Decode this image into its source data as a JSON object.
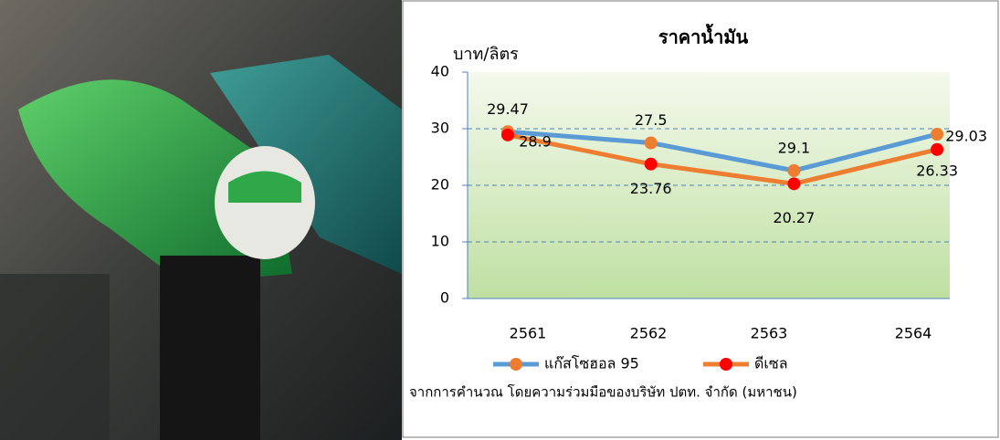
{
  "chart_data": {
    "type": "line",
    "title": "ราคาน้ำมัน",
    "y_label": "บาท/ลิตร",
    "categories": [
      "2561",
      "2562",
      "2563",
      "2564"
    ],
    "series": [
      {
        "name": "แก๊สโซฮอล 95",
        "color": "#5b9bd5",
        "marker_color": "#ed7d31",
        "values": [
          29.47,
          27.5,
          22.6,
          29.03
        ]
      },
      {
        "name": "ดีเซล",
        "color": "#ed7d31",
        "marker_color": "#ff0000",
        "values": [
          28.9,
          23.76,
          20.27,
          26.33
        ]
      }
    ],
    "annotations": [
      "29.1"
    ],
    "ylim": [
      0,
      40
    ],
    "yticks": [
      0,
      10,
      20,
      30,
      40
    ],
    "grid": true,
    "note": "จากการคำนวณ โดยความร่วมมือของบริษัท ปตท. จำกัด (มหาชน)"
  }
}
